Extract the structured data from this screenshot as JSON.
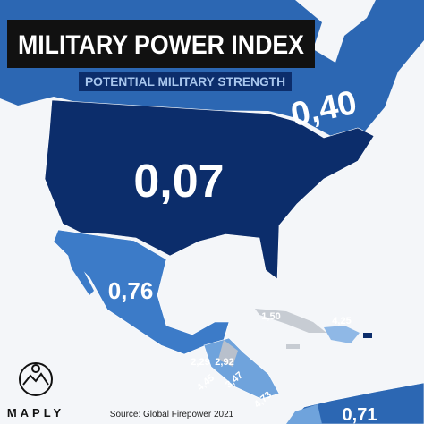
{
  "header": {
    "title": "MILITARY POWER INDEX",
    "subtitle": "POTENTIAL MILITARY STRENGTH"
  },
  "labels": [
    {
      "region": "canada",
      "text": "0,40"
    },
    {
      "region": "usa",
      "text": "0,07"
    },
    {
      "region": "mexico",
      "text": "0,76"
    },
    {
      "region": "cuba",
      "text": "1,50"
    },
    {
      "region": "dominican-republic",
      "text": "4,25"
    },
    {
      "region": "guatemala",
      "text": "2,29"
    },
    {
      "region": "honduras",
      "text": "2,92"
    },
    {
      "region": "el-salvador",
      "text": "4,45"
    },
    {
      "region": "nicaragua",
      "text": "3,47"
    },
    {
      "region": "panama",
      "text": "4,73"
    },
    {
      "region": "venezuela",
      "text": "0,71"
    }
  ],
  "footer": {
    "brand": "MAPLY",
    "source": "Source: Global Firepower 2021"
  }
}
